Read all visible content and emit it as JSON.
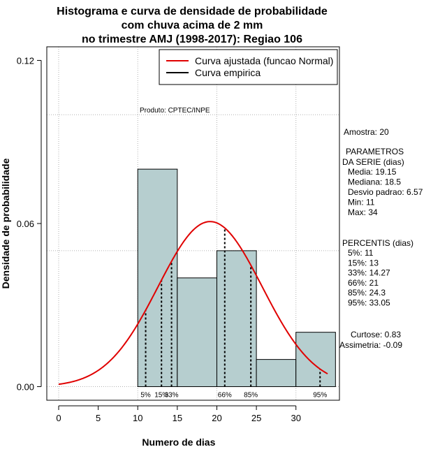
{
  "chart_data": {
    "type": "histogram",
    "title_lines": [
      "Histograma e curva de densidade de probabilidade",
      "com chuva acima de 2 mm",
      "no trimestre AMJ (1998-2017): Regiao 106"
    ],
    "xlabel": "Numero de dias",
    "ylabel": "Densidade de probabilidade",
    "xlim": [
      -1.5,
      35.5
    ],
    "ylim": [
      -0.005,
      0.125
    ],
    "x_ticks": [
      0,
      5,
      10,
      15,
      20,
      25,
      30
    ],
    "y_ticks": [
      0.0,
      0.06,
      0.12
    ],
    "y_tick_labels": [
      "0.00",
      "0.06",
      "0.12"
    ],
    "grid_x": [
      0,
      10,
      20,
      30
    ],
    "grid_y": [
      0.0,
      0.05,
      0.1
    ],
    "bar_color": "#b6cecf",
    "curve_color": "#e00000",
    "bins": [
      {
        "start": 10,
        "end": 15,
        "density": 0.08
      },
      {
        "start": 15,
        "end": 20,
        "density": 0.04
      },
      {
        "start": 20,
        "end": 25,
        "density": 0.05
      },
      {
        "start": 25,
        "end": 30,
        "density": 0.01
      },
      {
        "start": 30,
        "end": 35,
        "density": 0.02
      }
    ],
    "normal_curve": {
      "mean": 19.15,
      "sd": 6.57,
      "x_range": [
        0,
        34
      ]
    },
    "percentiles": [
      {
        "label": "5%",
        "value": 11
      },
      {
        "label": "15%",
        "value": 13
      },
      {
        "label": "33%",
        "value": 14.27
      },
      {
        "label": "66%",
        "value": 21
      },
      {
        "label": "85%",
        "value": 24.3
      },
      {
        "label": "95%",
        "value": 33.05
      }
    ],
    "legend": {
      "position": "top-right",
      "entries": [
        {
          "label": "Curva ajustada (funcao Normal)",
          "color": "#e00000"
        },
        {
          "label": "Curva empirica",
          "color": "#000000"
        }
      ]
    },
    "product_note": "Produto: CPTEC/INPE",
    "side_panel": {
      "amostra": "Amostra: 20",
      "param_title_1": "PARAMETROS",
      "param_title_2": "DA SERIE (dias)",
      "params": [
        "Media: 19.15",
        "Mediana: 18.5",
        "Desvio padrao: 6.57",
        "Min: 11",
        "Max: 34"
      ],
      "percentis_title": "PERCENTIS (dias)",
      "percentis": [
        "5%: 11",
        "15%: 13",
        "33%: 14.27",
        "66%: 21",
        "85%: 24.3",
        "95%: 33.05"
      ],
      "curtose": "Curtose: 0.83",
      "assimetria": "Assimetria: -0.09"
    }
  }
}
